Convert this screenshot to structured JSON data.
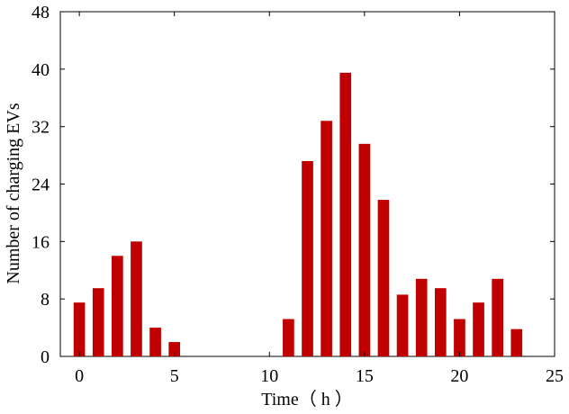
{
  "chart_data": {
    "type": "bar",
    "x": [
      0,
      1,
      2,
      3,
      4,
      5,
      6,
      7,
      8,
      9,
      10,
      11,
      12,
      13,
      14,
      15,
      16,
      17,
      18,
      19,
      20,
      21,
      22,
      23
    ],
    "values": [
      7.5,
      9.5,
      14,
      16,
      4,
      2,
      0,
      0,
      0,
      0,
      0,
      5.2,
      27.2,
      32.8,
      39.5,
      29.6,
      21.8,
      8.6,
      10.8,
      9.5,
      5.2,
      7.5,
      10.8,
      3.8
    ],
    "xlabel": "Time（ h ）",
    "ylabel": "Number of charging EVs",
    "xlim": [
      -1,
      25
    ],
    "ylim": [
      0,
      48
    ],
    "xticks": [
      0,
      5,
      10,
      15,
      20,
      25
    ],
    "yticks": [
      0,
      8,
      16,
      24,
      32,
      40,
      48
    ],
    "bar_color": "#c00000",
    "grid": false,
    "legend": false
  }
}
